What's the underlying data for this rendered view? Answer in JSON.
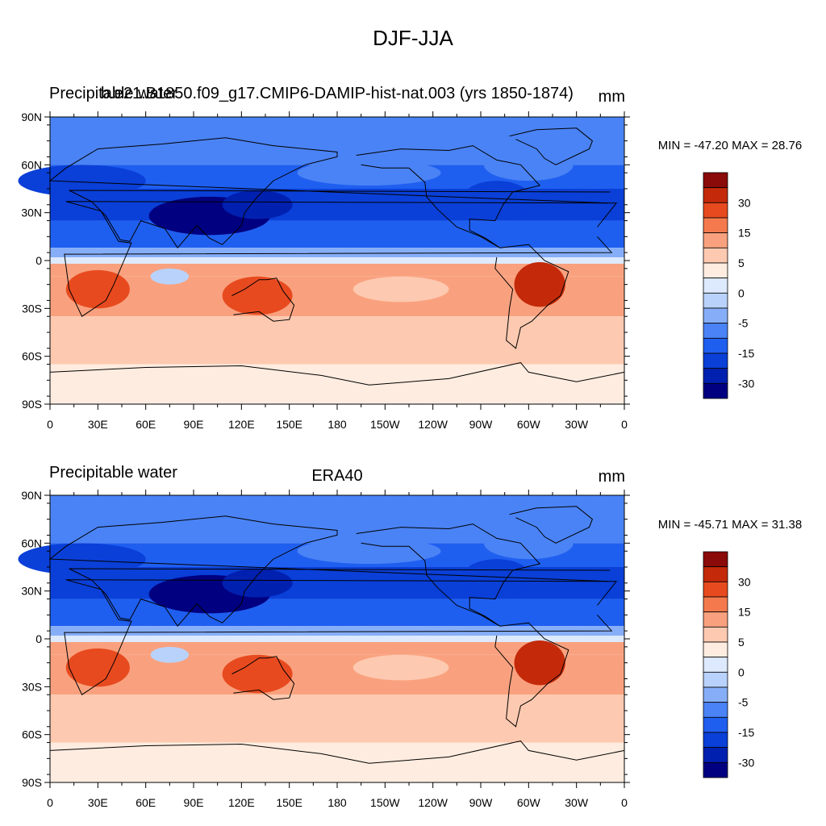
{
  "figure": {
    "title": "DJF-JJA"
  },
  "colors": {
    "levels": [
      "#000080",
      "#0020b0",
      "#0a3fd8",
      "#1f5ff0",
      "#4a83f5",
      "#86aef8",
      "#b9d2fb",
      "#dde9fc",
      "#ffece0",
      "#fdc9b0",
      "#f9a17e",
      "#f47a4d",
      "#e84a1f",
      "#c42a0a",
      "#8b0a0a"
    ],
    "coast": "#000000"
  },
  "axes": {
    "lat_labels": [
      "90N",
      "60N",
      "30N",
      "0",
      "30S",
      "60S",
      "90S"
    ],
    "lon_labels": [
      "0",
      "30E",
      "60E",
      "90E",
      "120E",
      "150E",
      "180",
      "150W",
      "120W",
      "90W",
      "60W",
      "30W",
      "0"
    ]
  },
  "colorbar": {
    "labels": [
      "30",
      "15",
      "5",
      "0",
      "-5",
      "-15",
      "-30"
    ]
  },
  "panels": [
    {
      "left": "Precipitable water",
      "center": "b.e21.B1850.f09_g17.CMIP6-DAMIP-hist-nat.003 (yrs 1850-1874)",
      "right": "mm",
      "stats": "MIN = -47.20 MAX =  28.76"
    },
    {
      "left": "Precipitable water",
      "center": "ERA40",
      "right": "mm",
      "stats": "MIN = -45.71 MAX =  31.38"
    }
  ],
  "chart_data": [
    {
      "type": "heatmap",
      "title": "b.e21.B1850.f09_g17.CMIP6-DAMIP-hist-nat.003 (yrs 1850-1874)",
      "field": "Precipitable water (DJF-JJA)",
      "units": "mm",
      "min": -47.2,
      "max": 28.76,
      "levels": [
        -40,
        -35,
        -30,
        -25,
        -20,
        -15,
        -10,
        -5,
        -2.5,
        0,
        2.5,
        5,
        10,
        15,
        20,
        25,
        30
      ],
      "colorbar_labels": [
        "30",
        "15",
        "5",
        "0",
        "-5",
        "-15",
        "-30"
      ],
      "xlim": [
        0,
        360
      ],
      "ylim": [
        -90,
        90
      ],
      "xlabel": "",
      "ylabel": ""
    },
    {
      "type": "heatmap",
      "title": "ERA40",
      "field": "Precipitable water (DJF-JJA)",
      "units": "mm",
      "min": -45.71,
      "max": 31.38,
      "levels": [
        -40,
        -35,
        -30,
        -25,
        -20,
        -15,
        -10,
        -5,
        -2.5,
        0,
        2.5,
        5,
        10,
        15,
        20,
        25,
        30
      ],
      "colorbar_labels": [
        "30",
        "15",
        "5",
        "0",
        "-5",
        "-15",
        "-30"
      ],
      "xlim": [
        0,
        360
      ],
      "ylim": [
        -90,
        90
      ],
      "xlabel": "",
      "ylabel": ""
    }
  ]
}
